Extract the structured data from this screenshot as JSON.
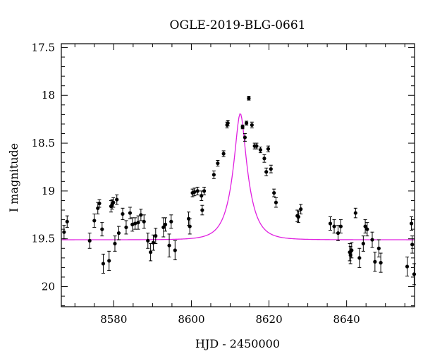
{
  "chart_data": {
    "type": "scatter",
    "title": "OGLE-2019-BLG-0661",
    "xlabel": "HJD - 2450000",
    "ylabel": "I magnitude",
    "xlim": [
      8566.5,
      8657.5
    ],
    "ylim": [
      20.21,
      17.46
    ],
    "y_inverted": true,
    "xticks": [
      8580,
      8600,
      8620,
      8640
    ],
    "xtick_labels": [
      "8580",
      "8600",
      "8620",
      "8640"
    ],
    "yticks": [
      17.5,
      18,
      18.5,
      19,
      19.5,
      20
    ],
    "ytick_labels": [
      "17.5",
      "18",
      "18.5",
      "19",
      "19.5",
      "20"
    ],
    "grid": false,
    "point_color": "#000000",
    "model_color": "#e020e0",
    "model": {
      "type": "point-lens",
      "t0": 8612.6,
      "peak_mag": 18.19,
      "baseline_mag": 19.51,
      "t_half_width": 3.9
    },
    "series": [
      {
        "x": [
          8567.2,
          8568.0,
          8573.8,
          8575.0,
          8575.9,
          8576.3,
          8577.0,
          8577.3,
          8578.8,
          8579.3,
          8579.6,
          8579.9,
          8580.3,
          8580.8,
          8581.3,
          8582.3,
          8583.2,
          8584.2,
          8584.8,
          8585.5,
          8586.3,
          8587.0,
          8587.8,
          8588.8,
          8589.5,
          8590.2,
          8590.8,
          8592.8,
          8593.3,
          8594.3,
          8594.8,
          8595.8,
          8599.3,
          8599.6,
          8600.3,
          8600.8,
          8601.6,
          8602.6,
          8602.8,
          8603.3,
          8605.8,
          8606.8,
          8608.3,
          8609.2,
          8609.4,
          8613.2,
          8613.8,
          8614.2,
          8614.8,
          8615.6,
          8616.3,
          8616.8,
          8617.8,
          8618.8,
          8619.3,
          8619.8,
          8620.5,
          8621.3,
          8621.8,
          8627.3,
          8627.6,
          8628.2,
          8635.8,
          8636.8,
          8637.8,
          8638.5,
          8640.8,
          8641.0,
          8641.3,
          8642.3,
          8643.3,
          8644.3,
          8644.8,
          8645.3,
          8646.6,
          8647.3,
          8648.3,
          8648.8,
          8655.6,
          8656.7,
          8656.9,
          8657.4
        ],
        "y": [
          19.43,
          19.32,
          19.52,
          19.31,
          19.18,
          19.13,
          19.4,
          19.76,
          19.73,
          19.16,
          19.14,
          19.12,
          19.55,
          19.09,
          19.44,
          19.24,
          19.38,
          19.23,
          19.35,
          19.34,
          19.33,
          19.25,
          19.32,
          19.52,
          19.64,
          19.54,
          19.47,
          19.38,
          19.35,
          19.57,
          19.32,
          19.62,
          19.29,
          19.37,
          19.02,
          19.01,
          19.0,
          19.05,
          19.2,
          19.0,
          18.83,
          18.71,
          18.61,
          18.31,
          18.29,
          18.33,
          18.44,
          18.29,
          18.03,
          18.31,
          18.53,
          18.53,
          18.57,
          18.66,
          18.8,
          18.56,
          18.77,
          19.02,
          19.12,
          19.26,
          19.27,
          19.19,
          19.34,
          19.37,
          19.44,
          19.37,
          19.64,
          19.67,
          19.62,
          19.23,
          19.7,
          19.55,
          19.37,
          19.4,
          19.51,
          19.74,
          19.6,
          19.75,
          19.79,
          19.34,
          19.56,
          19.87
        ],
        "yerr": [
          0.07,
          0.06,
          0.08,
          0.07,
          0.06,
          0.04,
          0.07,
          0.1,
          0.1,
          0.06,
          0.05,
          0.05,
          0.08,
          0.05,
          0.07,
          0.06,
          0.07,
          0.06,
          0.07,
          0.06,
          0.07,
          0.06,
          0.07,
          0.08,
          0.09,
          0.08,
          0.08,
          0.1,
          0.07,
          0.12,
          0.07,
          0.1,
          0.07,
          0.08,
          0.04,
          0.04,
          0.04,
          0.05,
          0.05,
          0.04,
          0.04,
          0.03,
          0.03,
          0.03,
          0.03,
          0.02,
          0.04,
          0.02,
          0.02,
          0.03,
          0.03,
          0.03,
          0.03,
          0.04,
          0.04,
          0.03,
          0.04,
          0.04,
          0.05,
          0.06,
          0.06,
          0.05,
          0.07,
          0.07,
          0.08,
          0.07,
          0.09,
          0.09,
          0.08,
          0.05,
          0.1,
          0.08,
          0.07,
          0.07,
          0.08,
          0.1,
          0.09,
          0.1,
          0.1,
          0.07,
          0.09,
          0.11
        ]
      }
    ]
  }
}
